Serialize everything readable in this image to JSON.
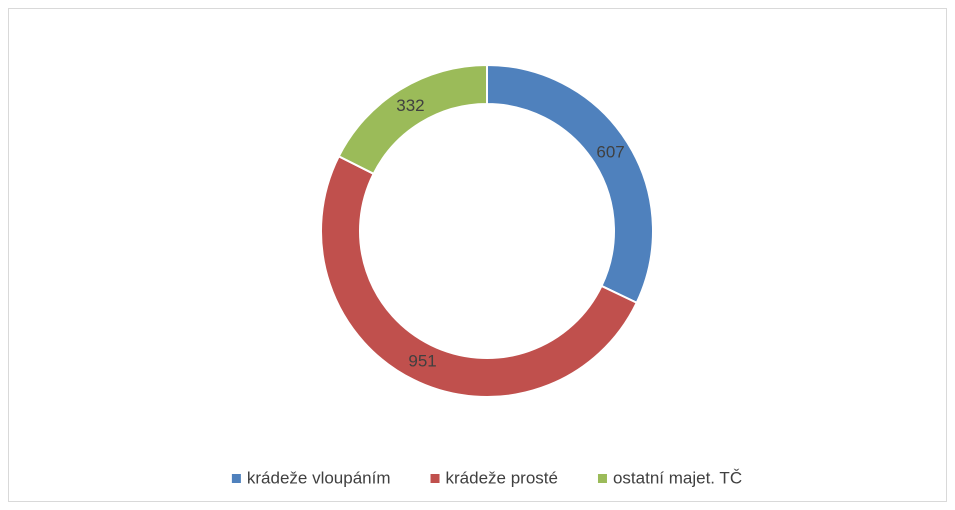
{
  "chart_data": {
    "type": "donut",
    "categories": [
      "krádeže vloupáním",
      "krádeže prosté",
      "ostatní majet. TČ"
    ],
    "values": [
      607,
      951,
      332
    ],
    "colors": [
      "#4f81bd",
      "#c0504d",
      "#9bbb59"
    ],
    "legend": "bottom"
  }
}
